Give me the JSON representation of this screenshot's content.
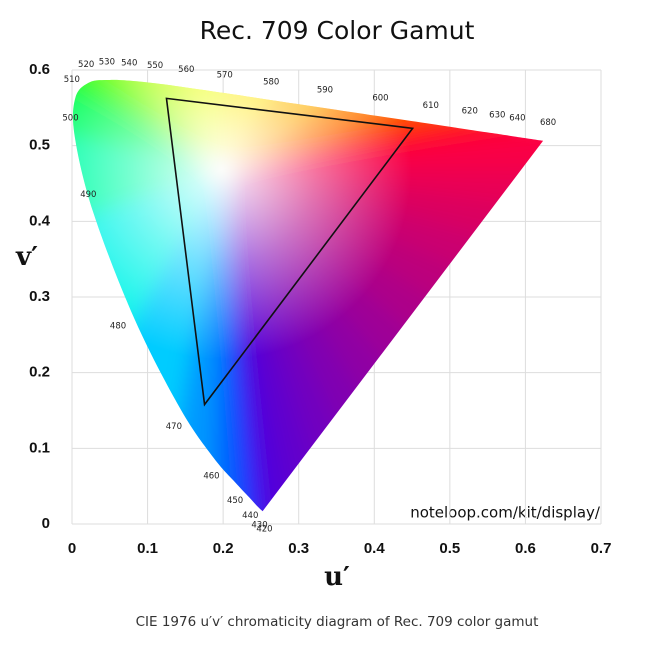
{
  "chart_data": {
    "type": "chromaticity",
    "title": "Rec. 709 Color Gamut",
    "x_label": "u′",
    "y_label": "v′",
    "xlim": [
      0,
      0.7
    ],
    "ylim": [
      0,
      0.6
    ],
    "xticks": [
      0,
      0.1,
      0.2,
      0.3,
      0.4,
      0.5,
      0.6,
      0.7
    ],
    "yticks": [
      0,
      0.1,
      0.2,
      0.3,
      0.4,
      0.5,
      0.6
    ],
    "grid": true,
    "locus": {
      "wavelengths": [
        420,
        430,
        440,
        450,
        460,
        470,
        480,
        490,
        500,
        510,
        520,
        530,
        540,
        550,
        560,
        570,
        580,
        590,
        600,
        610,
        620,
        630,
        640,
        680
      ],
      "u": [
        0.2522,
        0.2461,
        0.2347,
        0.2161,
        0.1877,
        0.1441,
        0.0828,
        0.0282,
        0.0035,
        0.0046,
        0.0231,
        0.0501,
        0.0792,
        0.1127,
        0.1531,
        0.2026,
        0.2623,
        0.3315,
        0.4035,
        0.4692,
        0.5203,
        0.5565,
        0.583,
        0.6234
      ],
      "v": [
        0.0169,
        0.0226,
        0.035,
        0.0549,
        0.0871,
        0.151,
        0.2708,
        0.4117,
        0.513,
        0.5638,
        0.5837,
        0.5868,
        0.5856,
        0.5821,
        0.5766,
        0.5694,
        0.5604,
        0.5501,
        0.5393,
        0.5296,
        0.5219,
        0.5165,
        0.5125,
        0.5065
      ],
      "colors": [
        "#4b00e0",
        "#3a10ff",
        "#2030ff",
        "#0050ff",
        "#0080ff",
        "#00b0ff",
        "#00e8ff",
        "#00ffd0",
        "#00ff80",
        "#00ff40",
        "#20ff00",
        "#50ff00",
        "#80ff00",
        "#b0ff00",
        "#d8ff00",
        "#ffff00",
        "#ffd000",
        "#ffa000",
        "#ff6000",
        "#ff3000",
        "#ff1020",
        "#ff0030",
        "#ff0040",
        "#ff0040"
      ]
    },
    "white_point": {
      "u": 0.1978,
      "v": 0.4683
    },
    "triangle": {
      "u": [
        0.125,
        0.4507,
        0.1754
      ],
      "v": [
        0.5625,
        0.5229,
        0.1579
      ],
      "color": "#111111"
    },
    "watermark": "noteloop.com/kit/display/"
  },
  "caption": "CIE 1976 u′v′ chromaticity diagram of Rec. 709 color gamut"
}
